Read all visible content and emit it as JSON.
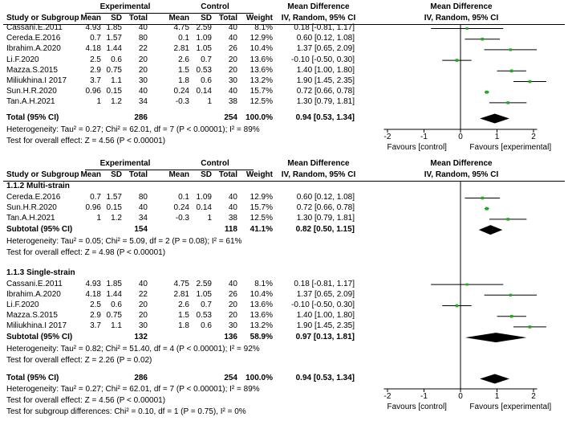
{
  "header": {
    "study": "Study or Subgroup",
    "experimental": "Experimental",
    "control": "Control",
    "mean": "Mean",
    "sd": "SD",
    "total": "Total",
    "weight": "Weight",
    "md": "Mean Difference",
    "ivr": "IV, Random, 95% CI"
  },
  "axis": {
    "ticks": [
      "-2",
      "-1",
      "0",
      "1",
      "2"
    ],
    "left": "Favours [control]",
    "right": "Favours [experimental]"
  },
  "chart_data": [
    {
      "type": "forest",
      "xlim": [
        -2,
        2
      ],
      "rows": [
        {
          "study": "Cassani.E.2011",
          "em": "4.93",
          "esd": "1.85",
          "en": "40",
          "cm": "4.75",
          "csd": "2.59",
          "cn": "40",
          "w": "8.1%",
          "ci": "0.18 [-0.81, 1.17]",
          "md": 0.18,
          "lo": -0.81,
          "hi": 1.17
        },
        {
          "study": "Cereda.E.2016",
          "em": "0.7",
          "esd": "1.57",
          "en": "80",
          "cm": "0.1",
          "csd": "1.09",
          "cn": "40",
          "w": "12.9%",
          "ci": "0.60 [0.12, 1.08]",
          "md": 0.6,
          "lo": 0.12,
          "hi": 1.08
        },
        {
          "study": "Ibrahim.A.2020",
          "em": "4.18",
          "esd": "1.44",
          "en": "22",
          "cm": "2.81",
          "csd": "1.05",
          "cn": "26",
          "w": "10.4%",
          "ci": "1.37 [0.65, 2.09]",
          "md": 1.37,
          "lo": 0.65,
          "hi": 2.09
        },
        {
          "study": "Li.F.2020",
          "em": "2.5",
          "esd": "0.6",
          "en": "20",
          "cm": "2.6",
          "csd": "0.7",
          "cn": "20",
          "w": "13.6%",
          "ci": "-0.10 [-0.50, 0.30]",
          "md": -0.1,
          "lo": -0.5,
          "hi": 0.3
        },
        {
          "study": "Mazza.S.2015",
          "em": "2.9",
          "esd": "0.75",
          "en": "20",
          "cm": "1.5",
          "csd": "0.53",
          "cn": "20",
          "w": "13.6%",
          "ci": "1.40 [1.00, 1.80]",
          "md": 1.4,
          "lo": 1.0,
          "hi": 1.8
        },
        {
          "study": "Miliukhina.I 2017",
          "em": "3.7",
          "esd": "1.1",
          "en": "30",
          "cm": "1.8",
          "csd": "0.6",
          "cn": "30",
          "w": "13.2%",
          "ci": "1.90 [1.45, 2.35]",
          "md": 1.9,
          "lo": 1.45,
          "hi": 2.35
        },
        {
          "study": "Sun.H.R.2020",
          "em": "0.96",
          "esd": "0.15",
          "en": "40",
          "cm": "0.24",
          "csd": "0.14",
          "cn": "40",
          "w": "15.7%",
          "ci": "0.72 [0.66, 0.78]",
          "md": 0.72,
          "lo": 0.66,
          "hi": 0.78
        },
        {
          "study": "Tan.A.H.2021",
          "em": "1",
          "esd": "1.2",
          "en": "34",
          "cm": "-0.3",
          "csd": "1",
          "cn": "38",
          "w": "12.5%",
          "ci": "1.30 [0.79, 1.81]",
          "md": 1.3,
          "lo": 0.79,
          "hi": 1.81
        }
      ],
      "total": {
        "label": "Total (95% CI)",
        "en": "286",
        "cn": "254",
        "w": "100.0%",
        "ci": "0.94 [0.53, 1.34]",
        "md": 0.94,
        "lo": 0.53,
        "hi": 1.34
      },
      "notes": [
        "Heterogeneity: Tau² = 0.27; Chi² = 62.01, df = 7 (P < 0.00001); I² = 89%",
        "Test for overall effect: Z = 4.56 (P < 0.00001)"
      ]
    },
    {
      "type": "forest",
      "xlim": [
        -2,
        2
      ],
      "subgroups": [
        {
          "title": "1.1.2 Multi-strain",
          "rows": [
            {
              "study": "Cereda.E.2016",
              "em": "0.7",
              "esd": "1.57",
              "en": "80",
              "cm": "0.1",
              "csd": "1.09",
              "cn": "40",
              "w": "12.9%",
              "ci": "0.60 [0.12, 1.08]",
              "md": 0.6,
              "lo": 0.12,
              "hi": 1.08
            },
            {
              "study": "Sun.H.R.2020",
              "em": "0.96",
              "esd": "0.15",
              "en": "40",
              "cm": "0.24",
              "csd": "0.14",
              "cn": "40",
              "w": "15.7%",
              "ci": "0.72 [0.66, 0.78]",
              "md": 0.72,
              "lo": 0.66,
              "hi": 0.78
            },
            {
              "study": "Tan.A.H.2021",
              "em": "1",
              "esd": "1.2",
              "en": "34",
              "cm": "-0.3",
              "csd": "1",
              "cn": "38",
              "w": "12.5%",
              "ci": "1.30 [0.79, 1.81]",
              "md": 1.3,
              "lo": 0.79,
              "hi": 1.81
            }
          ],
          "subtotal": {
            "label": "Subtotal (95% CI)",
            "en": "154",
            "cn": "118",
            "w": "41.1%",
            "ci": "0.82 [0.50, 1.15]",
            "md": 0.82,
            "lo": 0.5,
            "hi": 1.15
          },
          "notes": [
            "Heterogeneity: Tau² = 0.05; Chi² = 5.09, df = 2 (P = 0.08); I² = 61%",
            "Test for overall effect: Z = 4.98 (P < 0.00001)"
          ]
        },
        {
          "title": "1.1.3 Single-strain",
          "rows": [
            {
              "study": "Cassani.E.2011",
              "em": "4.93",
              "esd": "1.85",
              "en": "40",
              "cm": "4.75",
              "csd": "2.59",
              "cn": "40",
              "w": "8.1%",
              "ci": "0.18 [-0.81, 1.17]",
              "md": 0.18,
              "lo": -0.81,
              "hi": 1.17
            },
            {
              "study": "Ibrahim.A.2020",
              "em": "4.18",
              "esd": "1.44",
              "en": "22",
              "cm": "2.81",
              "csd": "1.05",
              "cn": "26",
              "w": "10.4%",
              "ci": "1.37 [0.65, 2.09]",
              "md": 1.37,
              "lo": 0.65,
              "hi": 2.09
            },
            {
              "study": "Li.F.2020",
              "em": "2.5",
              "esd": "0.6",
              "en": "20",
              "cm": "2.6",
              "csd": "0.7",
              "cn": "20",
              "w": "13.6%",
              "ci": "-0.10 [-0.50, 0.30]",
              "md": -0.1,
              "lo": -0.5,
              "hi": 0.3
            },
            {
              "study": "Mazza.S.2015",
              "em": "2.9",
              "esd": "0.75",
              "en": "20",
              "cm": "1.5",
              "csd": "0.53",
              "cn": "20",
              "w": "13.6%",
              "ci": "1.40 [1.00, 1.80]",
              "md": 1.4,
              "lo": 1.0,
              "hi": 1.8
            },
            {
              "study": "Miliukhina.I 2017",
              "em": "3.7",
              "esd": "1.1",
              "en": "30",
              "cm": "1.8",
              "csd": "0.6",
              "cn": "30",
              "w": "13.2%",
              "ci": "1.90 [1.45, 2.35]",
              "md": 1.9,
              "lo": 1.45,
              "hi": 2.35
            }
          ],
          "subtotal": {
            "label": "Subtotal (95% CI)",
            "en": "132",
            "cn": "136",
            "w": "58.9%",
            "ci": "0.97 [0.13, 1.81]",
            "md": 0.97,
            "lo": 0.13,
            "hi": 1.81
          },
          "notes": [
            "Heterogeneity: Tau² = 0.82; Chi² = 51.40, df = 4 (P < 0.00001); I² = 92%",
            "Test for overall effect: Z = 2.26 (P = 0.02)"
          ]
        }
      ],
      "total": {
        "label": "Total (95% CI)",
        "en": "286",
        "cn": "254",
        "w": "100.0%",
        "ci": "0.94 [0.53, 1.34]",
        "md": 0.94,
        "lo": 0.53,
        "hi": 1.34
      },
      "notes": [
        "Heterogeneity: Tau² = 0.27; Chi² = 62.01, df = 7 (P < 0.00001); I² = 89%",
        "Test for overall effect: Z = 4.56 (P < 0.00001)",
        "Test for subgroup differences: Chi² = 0.10, df = 1 (P = 0.75), I² = 0%"
      ]
    }
  ]
}
